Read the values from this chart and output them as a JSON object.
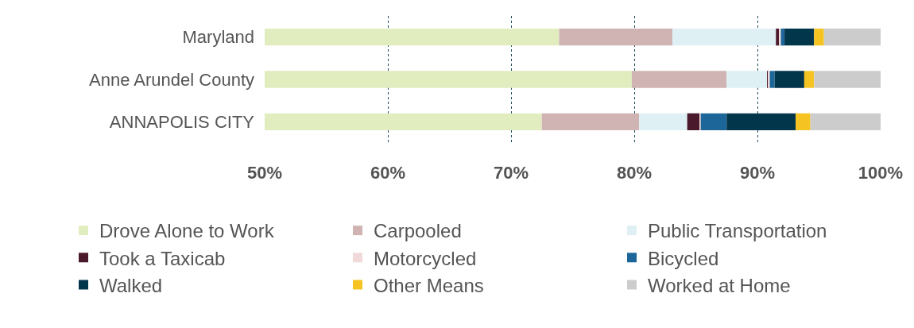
{
  "chart_data": {
    "type": "bar",
    "orientation": "horizontal",
    "categories": [
      "Maryland",
      "Anne Arundel County",
      "ANNAPOLIS CITY"
    ],
    "series": [
      {
        "name": "Drove Alone to Work",
        "color": "#e2edbf",
        "base": [
          0,
          0,
          0
        ],
        "values": [
          73.9,
          79.8,
          72.5
        ]
      },
      {
        "name": "Carpooled",
        "color": "#cfb4b3",
        "base": [
          73.9,
          79.8,
          72.5
        ],
        "values": [
          9.2,
          7.7,
          7.9
        ]
      },
      {
        "name": "Public Transportation",
        "color": "#dff0f4",
        "base": [
          83.1,
          87.5,
          80.4
        ],
        "values": [
          8.4,
          3.3,
          3.9
        ]
      },
      {
        "name": "Took a Taxicab",
        "color": "#4a1a2c",
        "base": [
          91.5,
          90.8,
          84.3
        ],
        "values": [
          0.3,
          0.1,
          1.0
        ]
      },
      {
        "name": "Motorcycled",
        "color": "#f2d9d9",
        "base": [
          91.8,
          90.9,
          85.3
        ],
        "values": [
          0.1,
          0.1,
          0.1
        ]
      },
      {
        "name": "Bicycled",
        "color": "#1d6699",
        "base": [
          91.9,
          91.0,
          85.4
        ],
        "values": [
          0.3,
          0.4,
          2.1
        ]
      },
      {
        "name": "Walked",
        "color": "#02364b",
        "base": [
          92.2,
          91.4,
          87.5
        ],
        "values": [
          2.4,
          2.4,
          5.6
        ]
      },
      {
        "name": "Other Means",
        "color": "#f5c422",
        "base": [
          94.6,
          93.8,
          93.1
        ],
        "values": [
          0.8,
          0.8,
          1.2
        ]
      },
      {
        "name": "Worked at Home",
        "color": "#cccccc",
        "base": [
          95.4,
          94.6,
          94.3
        ],
        "values": [
          4.6,
          5.4,
          5.7
        ]
      }
    ],
    "xlim": [
      50,
      100
    ],
    "xticks": [
      {
        "value": 50,
        "label": "50%"
      },
      {
        "value": 60,
        "label": "60%"
      },
      {
        "value": 70,
        "label": "70%"
      },
      {
        "value": 80,
        "label": "80%"
      },
      {
        "value": 90,
        "label": "90%"
      },
      {
        "value": 100,
        "label": "100%"
      }
    ],
    "grid": "x",
    "legend": "bottom"
  }
}
